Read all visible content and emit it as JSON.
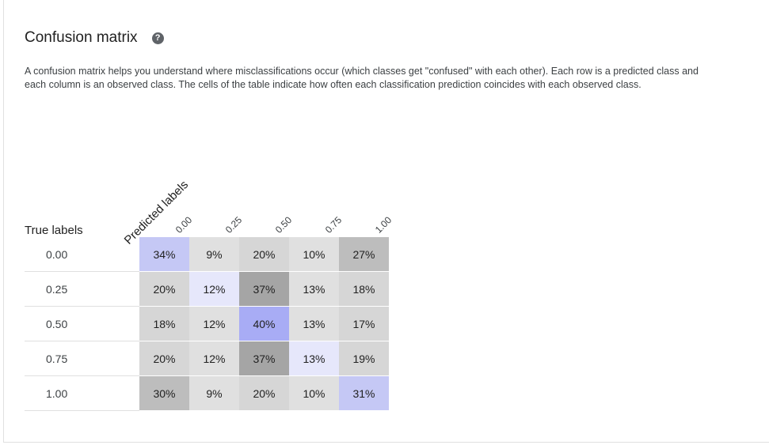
{
  "title": "Confusion matrix",
  "help_icon": "help-circle-icon",
  "description": "A confusion matrix helps you understand where misclassifications occur (which classes get \"confused\" with each other). Each row is a predicted class and each column is an observed class. The cells of the table indicate how often each classification prediction coincides with each observed class.",
  "true_labels_header": "True labels",
  "predicted_labels_header": "Predicted labels",
  "columns": [
    "0.00",
    "0.25",
    "0.50",
    "0.75",
    "1.00"
  ],
  "rows": [
    {
      "label": "0.00",
      "cells": [
        "34%",
        "9%",
        "20%",
        "10%",
        "27%"
      ]
    },
    {
      "label": "0.25",
      "cells": [
        "20%",
        "12%",
        "37%",
        "13%",
        "18%"
      ]
    },
    {
      "label": "0.50",
      "cells": [
        "18%",
        "12%",
        "40%",
        "13%",
        "17%"
      ]
    },
    {
      "label": "0.75",
      "cells": [
        "20%",
        "12%",
        "37%",
        "13%",
        "19%"
      ]
    },
    {
      "label": "1.00",
      "cells": [
        "30%",
        "9%",
        "20%",
        "10%",
        "31%"
      ]
    }
  ],
  "colors": {
    "diagonal_base": "#c5c8f5",
    "diagonal_light": "#e6e7fb",
    "diagonal_strong": "#a8acf5",
    "off_diagonal_high": "#a5a5a5",
    "off_diagonal_mid": "#bdbdbd",
    "off_diagonal_low": "#d6d6d6",
    "off_diagonal_min": "#e0e0e0"
  }
}
